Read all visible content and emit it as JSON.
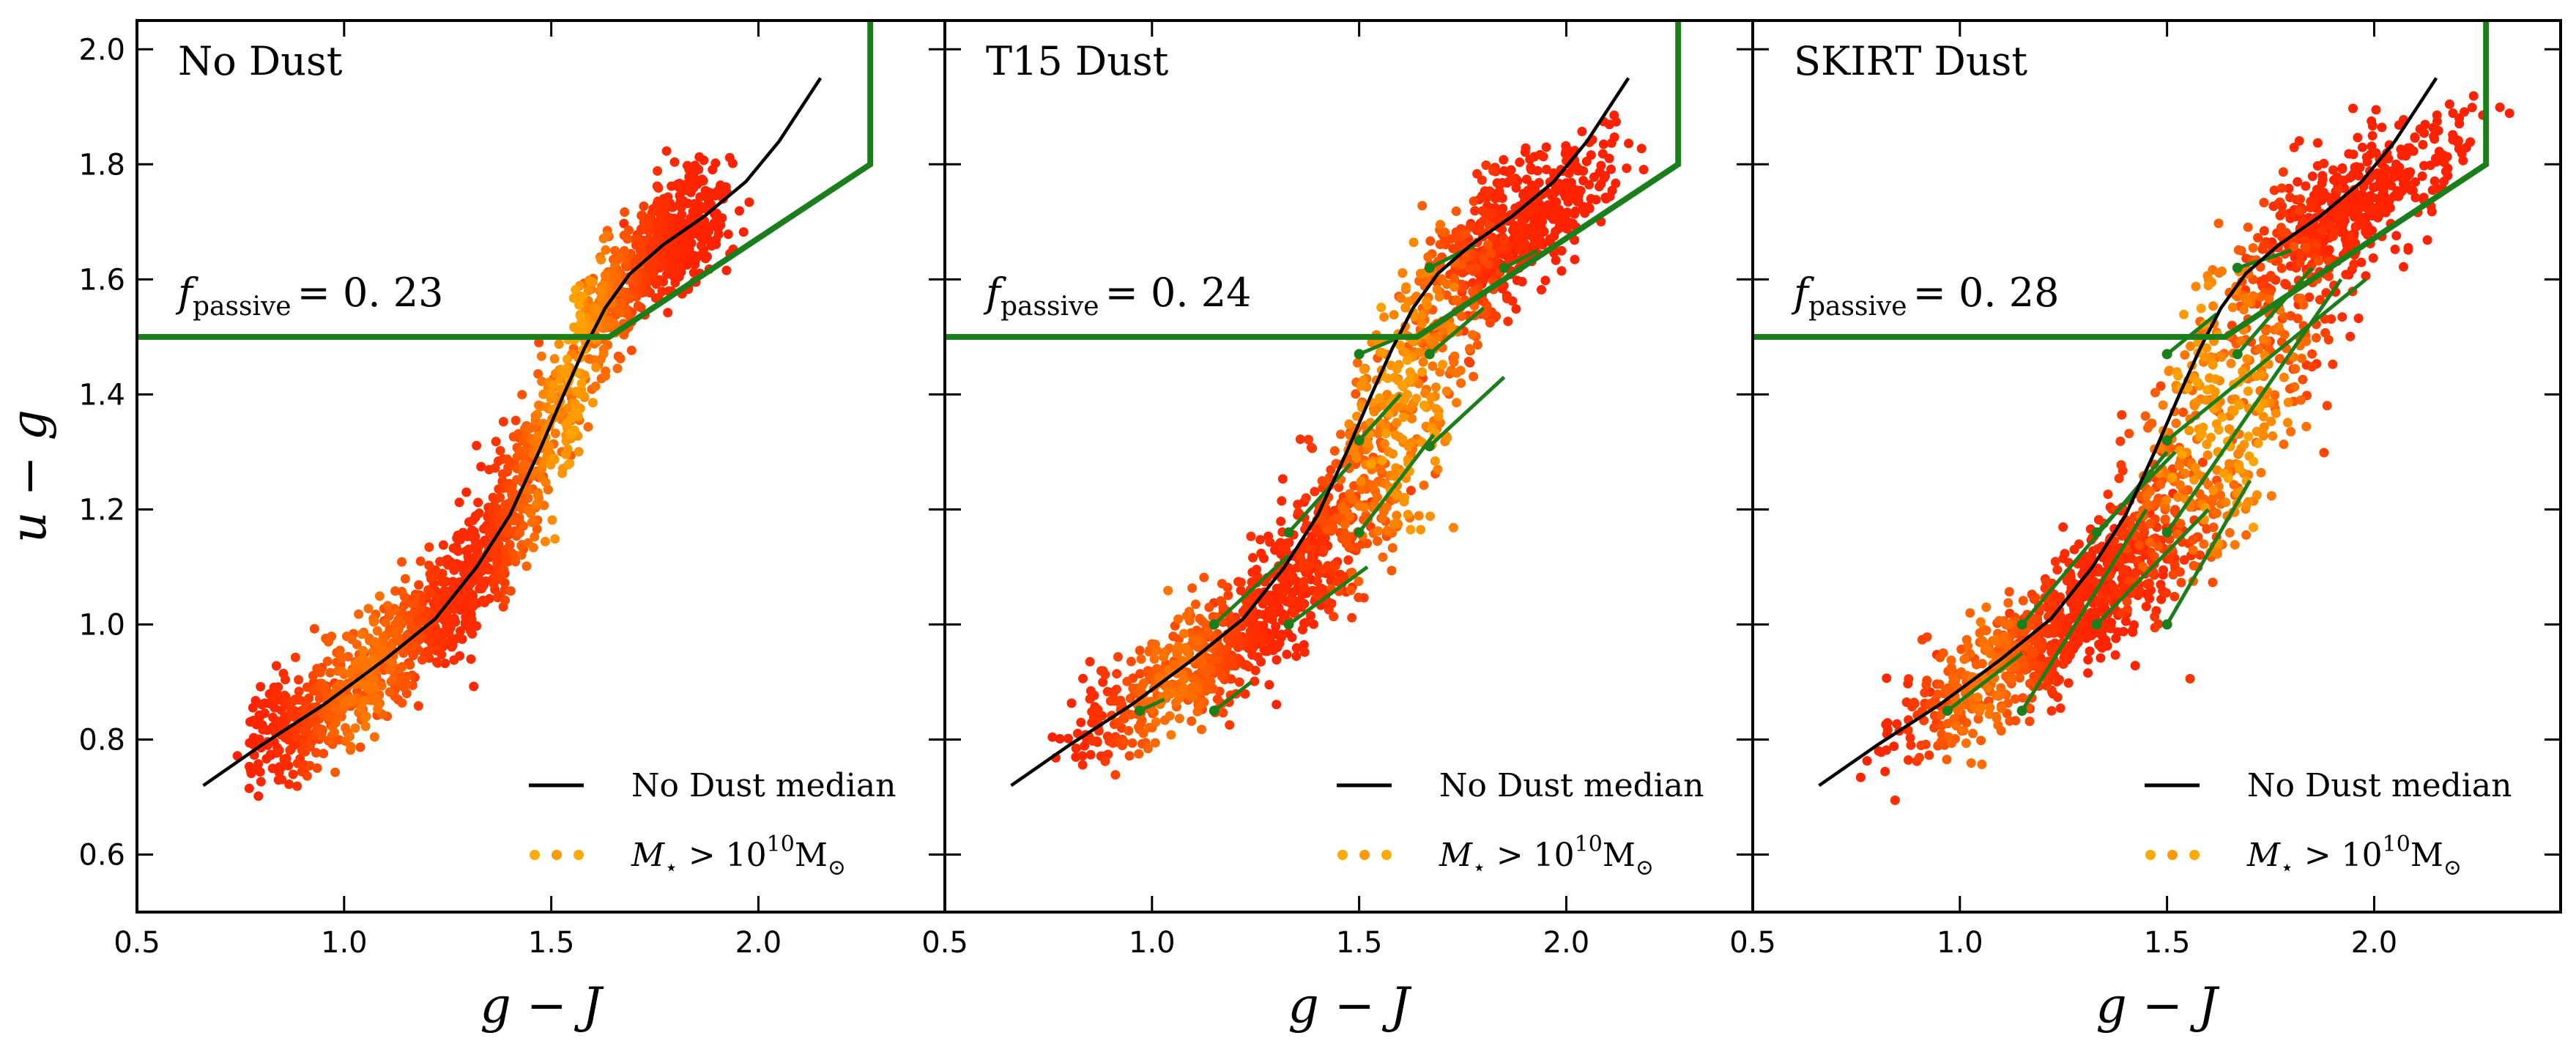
{
  "chart_data": [
    {
      "type": "scatter",
      "title": "No Dust",
      "xlabel": "g − J",
      "ylabel": "u − g",
      "xlim": [
        0.5,
        2.45
      ],
      "ylim": [
        0.5,
        2.05
      ],
      "xticks": [
        "0.5",
        "1.0",
        "1.5",
        "2.0"
      ],
      "yticks": [
        "0.6",
        "0.8",
        "1.0",
        "1.2",
        "1.4",
        "1.6",
        "1.8",
        "2.0"
      ],
      "f_passive_label": "f",
      "f_passive_sub": "passive",
      "f_passive_value": "= 0. 23",
      "legend": {
        "median": "No Dust median",
        "mass_prefix": "M",
        "mass_star": "⋆",
        "mass_op": " > 10",
        "mass_exp": "10",
        "mass_unit": "M",
        "mass_sun": "⊙"
      },
      "median_curve": [
        [
          0.66,
          0.72
        ],
        [
          0.8,
          0.79
        ],
        [
          0.95,
          0.86
        ],
        [
          1.1,
          0.94
        ],
        [
          1.22,
          1.01
        ],
        [
          1.32,
          1.1
        ],
        [
          1.4,
          1.19
        ],
        [
          1.47,
          1.3
        ],
        [
          1.53,
          1.4
        ],
        [
          1.58,
          1.48
        ],
        [
          1.63,
          1.55
        ],
        [
          1.69,
          1.61
        ],
        [
          1.77,
          1.66
        ],
        [
          1.87,
          1.71
        ],
        [
          1.97,
          1.77
        ],
        [
          2.05,
          1.84
        ],
        [
          2.15,
          1.95
        ]
      ],
      "passive_boundary": {
        "horizontal_y": 1.5,
        "knee": [
          1.64,
          1.5
        ],
        "slope_to": [
          2.27,
          1.8
        ],
        "vertical_top": [
          2.27,
          2.05
        ]
      },
      "scatter_color_low": "#ff2200",
      "scatter_color_high": "#ffff00",
      "boundary_color": "#1a7f1a",
      "shift_arrows": []
    },
    {
      "type": "scatter",
      "title": "T15 Dust",
      "xlabel": "g − J",
      "ylabel": "",
      "xlim": [
        0.5,
        2.45
      ],
      "ylim": [
        0.5,
        2.05
      ],
      "xticks": [
        "0.5",
        "1.0",
        "1.5",
        "2.0"
      ],
      "yticks": [],
      "f_passive_label": "f",
      "f_passive_sub": "passive",
      "f_passive_value": "= 0. 24",
      "legend": {
        "median": "No Dust median",
        "mass_prefix": "M",
        "mass_star": "⋆",
        "mass_op": " > 10",
        "mass_exp": "10",
        "mass_unit": "M",
        "mass_sun": "⊙"
      },
      "median_curve": [
        [
          0.66,
          0.72
        ],
        [
          0.8,
          0.79
        ],
        [
          0.95,
          0.86
        ],
        [
          1.1,
          0.94
        ],
        [
          1.22,
          1.01
        ],
        [
          1.32,
          1.1
        ],
        [
          1.4,
          1.19
        ],
        [
          1.47,
          1.3
        ],
        [
          1.53,
          1.4
        ],
        [
          1.58,
          1.48
        ],
        [
          1.63,
          1.55
        ],
        [
          1.69,
          1.61
        ],
        [
          1.77,
          1.66
        ],
        [
          1.87,
          1.71
        ],
        [
          1.97,
          1.77
        ],
        [
          2.05,
          1.84
        ],
        [
          2.15,
          1.95
        ]
      ],
      "passive_boundary": {
        "horizontal_y": 1.5,
        "knee": [
          1.64,
          1.5
        ],
        "slope_to": [
          2.27,
          1.8
        ],
        "vertical_top": [
          2.27,
          2.05
        ]
      },
      "scatter_color_low": "#ff2200",
      "scatter_color_high": "#ffff00",
      "boundary_color": "#1a7f1a",
      "shift_arrows": [
        [
          0.97,
          0.85,
          1.03,
          0.87
        ],
        [
          1.15,
          0.85,
          1.24,
          0.9
        ],
        [
          1.15,
          1.0,
          1.33,
          1.12
        ],
        [
          1.33,
          1.0,
          1.52,
          1.1
        ],
        [
          1.33,
          1.16,
          1.48,
          1.28
        ],
        [
          1.5,
          1.16,
          1.68,
          1.33
        ],
        [
          1.5,
          1.32,
          1.6,
          1.4
        ],
        [
          1.5,
          1.47,
          1.6,
          1.5
        ],
        [
          1.67,
          1.47,
          1.8,
          1.55
        ],
        [
          1.67,
          1.31,
          1.85,
          1.43
        ],
        [
          1.67,
          1.62,
          1.78,
          1.66
        ],
        [
          1.85,
          1.62,
          1.93,
          1.65
        ]
      ]
    },
    {
      "type": "scatter",
      "title": "SKIRT Dust",
      "xlabel": "g − J",
      "ylabel": "",
      "xlim": [
        0.5,
        2.45
      ],
      "ylim": [
        0.5,
        2.05
      ],
      "xticks": [
        "0.5",
        "1.0",
        "1.5",
        "2.0"
      ],
      "yticks": [],
      "f_passive_label": "f",
      "f_passive_sub": "passive",
      "f_passive_value": "= 0. 28",
      "legend": {
        "median": "No Dust median",
        "mass_prefix": "M",
        "mass_star": "⋆",
        "mass_op": " > 10",
        "mass_exp": "10",
        "mass_unit": "M",
        "mass_sun": "⊙"
      },
      "median_curve": [
        [
          0.66,
          0.72
        ],
        [
          0.8,
          0.79
        ],
        [
          0.95,
          0.86
        ],
        [
          1.1,
          0.94
        ],
        [
          1.22,
          1.01
        ],
        [
          1.32,
          1.1
        ],
        [
          1.4,
          1.19
        ],
        [
          1.47,
          1.3
        ],
        [
          1.53,
          1.4
        ],
        [
          1.58,
          1.48
        ],
        [
          1.63,
          1.55
        ],
        [
          1.69,
          1.61
        ],
        [
          1.77,
          1.66
        ],
        [
          1.87,
          1.71
        ],
        [
          1.97,
          1.77
        ],
        [
          2.05,
          1.84
        ],
        [
          2.15,
          1.95
        ]
      ],
      "passive_boundary": {
        "horizontal_y": 1.5,
        "knee": [
          1.64,
          1.5
        ],
        "slope_to": [
          2.27,
          1.8
        ],
        "vertical_top": [
          2.27,
          2.05
        ]
      },
      "scatter_color_low": "#ff2200",
      "scatter_color_high": "#ffff00",
      "boundary_color": "#1a7f1a",
      "shift_arrows": [
        [
          0.97,
          0.85,
          1.15,
          0.95
        ],
        [
          1.15,
          0.85,
          1.45,
          1.2
        ],
        [
          1.15,
          1.0,
          1.5,
          1.3
        ],
        [
          1.33,
          1.16,
          1.52,
          1.3
        ],
        [
          1.5,
          1.16,
          1.92,
          1.6
        ],
        [
          1.5,
          1.32,
          1.98,
          1.6
        ],
        [
          1.5,
          1.47,
          1.62,
          1.54
        ],
        [
          1.67,
          1.47,
          1.85,
          1.62
        ],
        [
          1.67,
          1.62,
          1.8,
          1.65
        ],
        [
          1.33,
          1.0,
          1.6,
          1.2
        ],
        [
          1.5,
          1.0,
          1.7,
          1.25
        ]
      ]
    }
  ]
}
